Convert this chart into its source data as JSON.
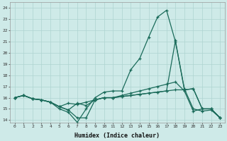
{
  "xlabel": "Humidex (Indice chaleur)",
  "bg_color": "#ceeae8",
  "grid_color": "#aed4d0",
  "line_color": "#1a6b5a",
  "xlim": [
    -0.5,
    23.5
  ],
  "ylim": [
    13.8,
    24.5
  ],
  "yticks": [
    14,
    15,
    16,
    17,
    18,
    19,
    20,
    21,
    22,
    23,
    24
  ],
  "xticks": [
    0,
    1,
    2,
    3,
    4,
    5,
    6,
    7,
    8,
    9,
    10,
    11,
    12,
    13,
    14,
    15,
    16,
    17,
    18,
    19,
    20,
    21,
    22,
    23
  ],
  "line1_x": [
    0,
    1,
    2,
    3,
    4,
    5,
    6,
    7,
    8,
    9,
    10,
    11,
    12,
    13,
    14,
    15,
    16,
    17,
    18,
    19,
    20,
    21,
    22,
    23
  ],
  "line1_y": [
    16.0,
    16.2,
    15.9,
    15.8,
    15.6,
    15.0,
    14.7,
    13.8,
    15.0,
    16.0,
    16.5,
    16.6,
    16.6,
    18.5,
    19.5,
    21.4,
    23.2,
    23.8,
    21.0,
    16.8,
    15.0,
    14.8,
    14.9,
    14.2
  ],
  "line2_x": [
    0,
    1,
    2,
    3,
    4,
    5,
    6,
    7,
    8,
    9,
    10,
    11,
    12,
    13,
    14,
    15,
    16,
    17,
    18,
    19,
    20,
    21,
    22,
    23
  ],
  "line2_y": [
    16.0,
    16.2,
    15.9,
    15.8,
    15.6,
    15.2,
    14.9,
    15.5,
    15.3,
    15.8,
    16.0,
    16.0,
    16.2,
    16.4,
    16.6,
    16.8,
    17.0,
    17.2,
    17.4,
    16.6,
    14.8,
    15.0,
    15.0,
    14.2
  ],
  "line3_x": [
    0,
    1,
    2,
    3,
    4,
    5,
    6,
    7,
    8,
    9,
    10,
    11,
    12,
    13,
    14,
    15,
    16,
    17,
    18,
    19,
    20,
    21,
    22,
    23
  ],
  "line3_y": [
    16.0,
    16.2,
    15.9,
    15.8,
    15.6,
    15.2,
    15.5,
    15.4,
    15.6,
    15.8,
    16.0,
    16.0,
    16.1,
    16.2,
    16.3,
    16.4,
    16.5,
    16.6,
    16.7,
    16.7,
    16.8,
    15.0,
    15.0,
    14.2
  ],
  "line4_x": [
    0,
    1,
    2,
    3,
    4,
    5,
    6,
    7,
    8,
    9,
    10,
    11,
    12,
    13,
    14,
    15,
    16,
    17,
    18,
    19,
    20,
    21,
    22,
    23
  ],
  "line4_y": [
    16.0,
    16.2,
    15.9,
    15.8,
    15.6,
    15.2,
    14.9,
    14.2,
    14.2,
    15.8,
    16.0,
    16.0,
    16.1,
    16.2,
    16.3,
    16.4,
    16.5,
    16.6,
    21.1,
    16.7,
    16.8,
    15.0,
    15.0,
    14.2
  ]
}
